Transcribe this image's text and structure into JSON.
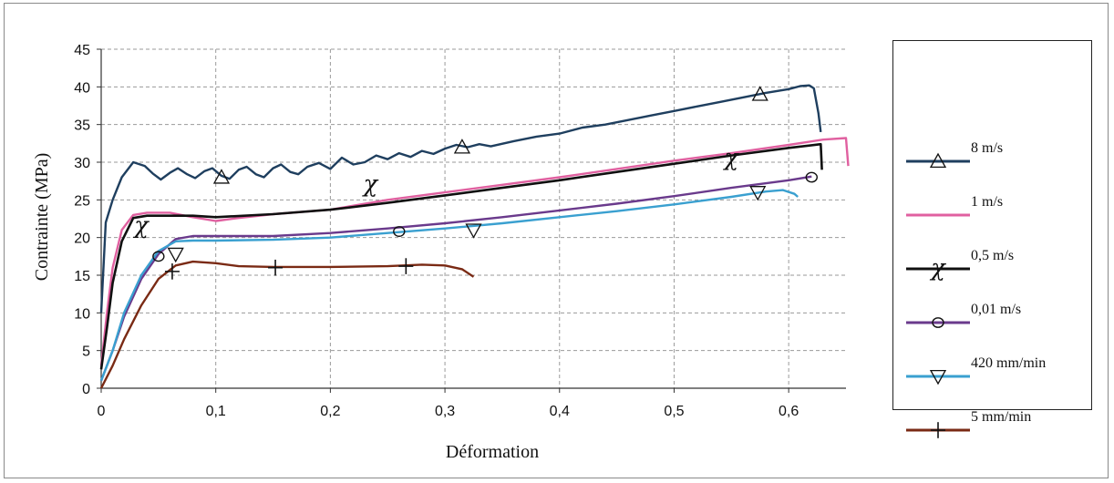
{
  "chart_data": {
    "type": "line",
    "title": "",
    "xlabel": "Déformation",
    "ylabel": "Contrainte  (MPa)",
    "xlim": [
      0,
      0.65
    ],
    "ylim": [
      0,
      45
    ],
    "x_ticks": [
      "0",
      "0,1",
      "0,2",
      "0,3",
      "0,4",
      "0,5",
      "0,6"
    ],
    "x_tick_values": [
      0,
      0.1,
      0.2,
      0.3,
      0.4,
      0.5,
      0.6
    ],
    "y_ticks": [
      "0",
      "5",
      "10",
      "15",
      "20",
      "25",
      "30",
      "35",
      "40",
      "45"
    ],
    "y_tick_values": [
      0,
      5,
      10,
      15,
      20,
      25,
      30,
      35,
      40,
      45
    ],
    "grid": "dashed",
    "legend_position": "right",
    "series": [
      {
        "name": "8 m/s",
        "color": "#1f3f5f",
        "marker": "triangle",
        "markers": [
          [
            0.105,
            28
          ],
          [
            0.315,
            32
          ],
          [
            0.575,
            39
          ]
        ],
        "points": [
          [
            0.0,
            10
          ],
          [
            0.004,
            22
          ],
          [
            0.01,
            25
          ],
          [
            0.018,
            28
          ],
          [
            0.028,
            30
          ],
          [
            0.038,
            29.5
          ],
          [
            0.045,
            28.5
          ],
          [
            0.052,
            27.7
          ],
          [
            0.06,
            28.6
          ],
          [
            0.067,
            29.2
          ],
          [
            0.075,
            28.4
          ],
          [
            0.082,
            27.9
          ],
          [
            0.09,
            28.8
          ],
          [
            0.097,
            29.2
          ],
          [
            0.105,
            28.2
          ],
          [
            0.112,
            27.8
          ],
          [
            0.12,
            29.0
          ],
          [
            0.127,
            29.4
          ],
          [
            0.135,
            28.4
          ],
          [
            0.142,
            28.0
          ],
          [
            0.15,
            29.2
          ],
          [
            0.157,
            29.7
          ],
          [
            0.165,
            28.7
          ],
          [
            0.172,
            28.4
          ],
          [
            0.18,
            29.4
          ],
          [
            0.19,
            29.9
          ],
          [
            0.2,
            29.1
          ],
          [
            0.21,
            30.6
          ],
          [
            0.22,
            29.7
          ],
          [
            0.23,
            30.0
          ],
          [
            0.24,
            30.9
          ],
          [
            0.25,
            30.4
          ],
          [
            0.26,
            31.2
          ],
          [
            0.27,
            30.7
          ],
          [
            0.28,
            31.5
          ],
          [
            0.29,
            31.1
          ],
          [
            0.3,
            31.8
          ],
          [
            0.31,
            32.3
          ],
          [
            0.32,
            32.0
          ],
          [
            0.33,
            32.4
          ],
          [
            0.34,
            32.1
          ],
          [
            0.36,
            32.8
          ],
          [
            0.38,
            33.4
          ],
          [
            0.4,
            33.8
          ],
          [
            0.42,
            34.6
          ],
          [
            0.44,
            35.0
          ],
          [
            0.46,
            35.6
          ],
          [
            0.48,
            36.2
          ],
          [
            0.5,
            36.8
          ],
          [
            0.52,
            37.4
          ],
          [
            0.54,
            38.0
          ],
          [
            0.56,
            38.6
          ],
          [
            0.58,
            39.2
          ],
          [
            0.6,
            39.7
          ],
          [
            0.61,
            40.1
          ],
          [
            0.618,
            40.2
          ],
          [
            0.622,
            39.8
          ],
          [
            0.626,
            36.5
          ],
          [
            0.628,
            34.0
          ]
        ]
      },
      {
        "name": "1 m/s",
        "color": "#e060a0",
        "marker": "none",
        "markers": [],
        "points": [
          [
            0.0,
            3
          ],
          [
            0.005,
            10
          ],
          [
            0.01,
            16
          ],
          [
            0.018,
            21
          ],
          [
            0.028,
            23
          ],
          [
            0.04,
            23.3
          ],
          [
            0.06,
            23.3
          ],
          [
            0.08,
            22.7
          ],
          [
            0.1,
            22.2
          ],
          [
            0.12,
            22.6
          ],
          [
            0.15,
            23.1
          ],
          [
            0.2,
            23.7
          ],
          [
            0.25,
            25.0
          ],
          [
            0.3,
            26.0
          ],
          [
            0.35,
            27.0
          ],
          [
            0.4,
            28.0
          ],
          [
            0.45,
            29.1
          ],
          [
            0.5,
            30.2
          ],
          [
            0.55,
            31.2
          ],
          [
            0.6,
            32.3
          ],
          [
            0.63,
            33.0
          ],
          [
            0.65,
            33.2
          ],
          [
            0.652,
            29.5
          ]
        ]
      },
      {
        "name": "0,5 m/s",
        "color": "#101010",
        "marker": "chi",
        "markers": [
          [
            0.035,
            21.5
          ],
          [
            0.235,
            27
          ],
          [
            0.55,
            30.5
          ]
        ],
        "points": [
          [
            0.0,
            2.5
          ],
          [
            0.005,
            8
          ],
          [
            0.01,
            14
          ],
          [
            0.018,
            19.5
          ],
          [
            0.028,
            22.6
          ],
          [
            0.04,
            22.9
          ],
          [
            0.06,
            22.9
          ],
          [
            0.08,
            22.9
          ],
          [
            0.1,
            22.7
          ],
          [
            0.15,
            23.1
          ],
          [
            0.2,
            23.7
          ],
          [
            0.25,
            24.6
          ],
          [
            0.3,
            25.6
          ],
          [
            0.35,
            26.6
          ],
          [
            0.4,
            27.6
          ],
          [
            0.45,
            28.7
          ],
          [
            0.5,
            29.8
          ],
          [
            0.55,
            30.9
          ],
          [
            0.6,
            31.9
          ],
          [
            0.628,
            32.4
          ],
          [
            0.629,
            29.0
          ]
        ]
      },
      {
        "name": "0,01 m/s",
        "color": "#6a3a8c",
        "marker": "circle",
        "markers": [
          [
            0.05,
            17.5
          ],
          [
            0.26,
            20.8
          ],
          [
            0.62,
            28
          ]
        ],
        "points": [
          [
            0.0,
            1
          ],
          [
            0.01,
            5
          ],
          [
            0.02,
            9.5
          ],
          [
            0.035,
            14.5
          ],
          [
            0.05,
            17.8
          ],
          [
            0.065,
            19.8
          ],
          [
            0.08,
            20.2
          ],
          [
            0.1,
            20.2
          ],
          [
            0.15,
            20.2
          ],
          [
            0.2,
            20.6
          ],
          [
            0.25,
            21.2
          ],
          [
            0.3,
            21.9
          ],
          [
            0.35,
            22.7
          ],
          [
            0.4,
            23.6
          ],
          [
            0.45,
            24.5
          ],
          [
            0.5,
            25.5
          ],
          [
            0.55,
            26.6
          ],
          [
            0.6,
            27.6
          ],
          [
            0.62,
            28.1
          ]
        ]
      },
      {
        "name": "420 mm/min",
        "color": "#3aa0d0",
        "marker": "inverted-triangle",
        "markers": [
          [
            0.065,
            17.8
          ],
          [
            0.325,
            21
          ],
          [
            0.573,
            26
          ]
        ],
        "points": [
          [
            0.0,
            1
          ],
          [
            0.01,
            5
          ],
          [
            0.02,
            10
          ],
          [
            0.035,
            15
          ],
          [
            0.05,
            18.2
          ],
          [
            0.065,
            19.5
          ],
          [
            0.08,
            19.6
          ],
          [
            0.1,
            19.6
          ],
          [
            0.15,
            19.7
          ],
          [
            0.2,
            20.0
          ],
          [
            0.25,
            20.6
          ],
          [
            0.3,
            21.2
          ],
          [
            0.35,
            21.9
          ],
          [
            0.4,
            22.7
          ],
          [
            0.45,
            23.5
          ],
          [
            0.5,
            24.4
          ],
          [
            0.55,
            25.4
          ],
          [
            0.58,
            26.1
          ],
          [
            0.595,
            26.3
          ],
          [
            0.605,
            25.8
          ],
          [
            0.608,
            25.4
          ]
        ]
      },
      {
        "name": "5 mm/min",
        "color": "#7a2a14",
        "marker": "plus",
        "markers": [
          [
            0.062,
            15.5
          ],
          [
            0.152,
            16
          ],
          [
            0.266,
            16.2
          ]
        ],
        "points": [
          [
            0.0,
            0
          ],
          [
            0.01,
            3
          ],
          [
            0.02,
            6.5
          ],
          [
            0.035,
            11
          ],
          [
            0.05,
            14.5
          ],
          [
            0.065,
            16.3
          ],
          [
            0.08,
            16.8
          ],
          [
            0.1,
            16.6
          ],
          [
            0.12,
            16.2
          ],
          [
            0.15,
            16.1
          ],
          [
            0.2,
            16.1
          ],
          [
            0.25,
            16.2
          ],
          [
            0.28,
            16.4
          ],
          [
            0.3,
            16.3
          ],
          [
            0.315,
            15.8
          ],
          [
            0.325,
            14.8
          ]
        ]
      }
    ]
  }
}
